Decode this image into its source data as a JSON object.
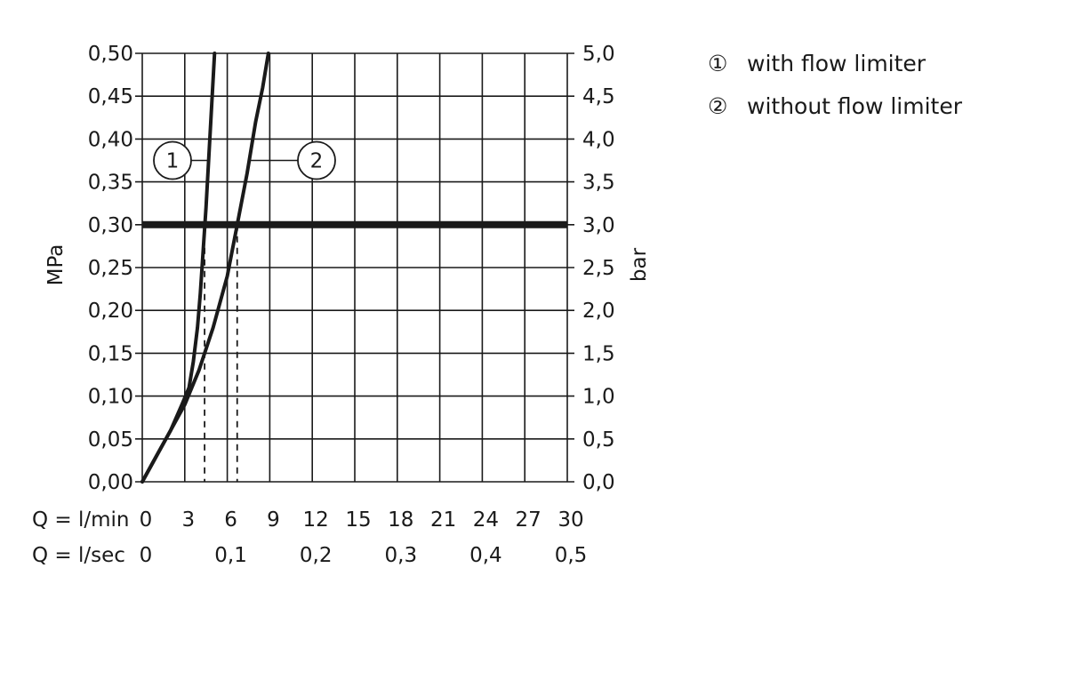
{
  "chart_data": {
    "type": "line",
    "xlabel_lmin": "Q = l/min",
    "xlabel_lsec": "Q = l/sec",
    "ylabel_left": "MPa",
    "ylabel_right": "bar",
    "xlim": [
      0,
      30
    ],
    "ylim": [
      0,
      0.5
    ],
    "grid": true,
    "x_ticks_lmin": [
      "0",
      "3",
      "6",
      "9",
      "12",
      "15",
      "18",
      "21",
      "24",
      "27",
      "30"
    ],
    "x_ticks_lsec": [
      {
        "value": 0,
        "label": "0"
      },
      {
        "value": 6,
        "label": "0,1"
      },
      {
        "value": 12,
        "label": "0,2"
      },
      {
        "value": 18,
        "label": "0,3"
      },
      {
        "value": 24,
        "label": "0,4"
      },
      {
        "value": 30,
        "label": "0,5"
      }
    ],
    "y_ticks_left": [
      "0,00",
      "0,05",
      "0,10",
      "0,15",
      "0,20",
      "0,25",
      "0,30",
      "0,35",
      "0,40",
      "0,45",
      "0,50"
    ],
    "y_ticks_right": [
      "0,0",
      "0,5",
      "1,0",
      "1,5",
      "2,0",
      "2,5",
      "3,0",
      "3,5",
      "4,0",
      "4,5",
      "5,0"
    ],
    "reference_line": {
      "y": 0.3
    },
    "dashed_markers": [
      {
        "series": "1",
        "x": 4.4
      },
      {
        "series": "2",
        "x": 6.7
      }
    ],
    "series": [
      {
        "name": "1",
        "x": [
          0,
          1,
          2,
          2.8,
          3.3,
          3.6,
          3.9,
          4.1,
          4.3,
          4.5,
          4.7,
          4.9,
          5.1
        ],
        "y": [
          0,
          0.03,
          0.06,
          0.09,
          0.11,
          0.14,
          0.18,
          0.22,
          0.27,
          0.32,
          0.38,
          0.44,
          0.5
        ]
      },
      {
        "name": "2",
        "x": [
          0,
          1,
          2,
          3,
          4,
          5,
          6,
          6.7,
          7.4,
          8.0,
          8.5,
          8.9
        ],
        "y": [
          0,
          0.03,
          0.06,
          0.09,
          0.13,
          0.18,
          0.24,
          0.3,
          0.36,
          0.42,
          0.46,
          0.5
        ]
      }
    ],
    "legend": [
      {
        "marker": "①",
        "label": "with flow limiter"
      },
      {
        "marker": "②",
        "label": "without flow limiter"
      }
    ],
    "legend_placement": "top-right"
  }
}
